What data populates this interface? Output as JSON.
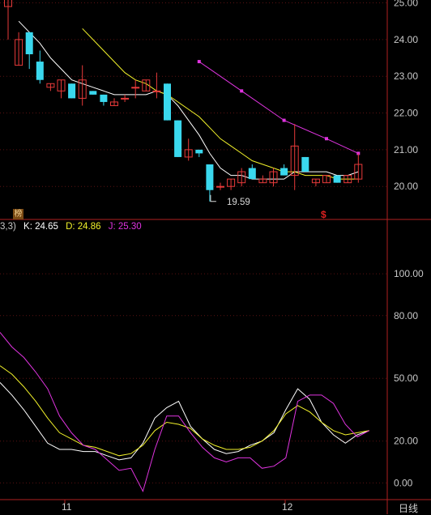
{
  "chart_data": [
    {
      "type": "candlestick",
      "ylim": [
        19.1,
        25.1
      ],
      "price_ticks": [
        "25.00",
        "24.00",
        "23.00",
        "22.00",
        "21.00",
        "20.00"
      ],
      "candles": [
        {
          "o": 24.9,
          "h": 25.1,
          "l": 24.0,
          "c": 25.1
        },
        {
          "o": 23.3,
          "h": 24.2,
          "l": 23.3,
          "c": 24.0
        },
        {
          "o": 24.2,
          "h": 24.2,
          "l": 23.2,
          "c": 23.6
        },
        {
          "o": 23.4,
          "h": 23.7,
          "l": 22.8,
          "c": 22.9
        },
        {
          "o": 22.7,
          "h": 22.8,
          "l": 22.6,
          "c": 22.8
        },
        {
          "o": 22.6,
          "h": 22.9,
          "l": 22.4,
          "c": 22.9
        },
        {
          "o": 22.8,
          "h": 22.8,
          "l": 22.4,
          "c": 22.4
        },
        {
          "o": 22.4,
          "h": 23.3,
          "l": 22.2,
          "c": 22.9
        },
        {
          "o": 22.6,
          "h": 22.6,
          "l": 22.5,
          "c": 22.5
        },
        {
          "o": 22.5,
          "h": 22.5,
          "l": 22.2,
          "c": 22.3
        },
        {
          "o": 22.2,
          "h": 22.4,
          "l": 22.2,
          "c": 22.3
        },
        {
          "o": 22.4,
          "h": 22.5,
          "l": 22.3,
          "c": 22.4
        },
        {
          "o": 22.7,
          "h": 22.9,
          "l": 22.4,
          "c": 22.7
        },
        {
          "o": 22.6,
          "h": 22.9,
          "l": 22.6,
          "c": 22.9
        },
        {
          "o": 22.6,
          "h": 23.1,
          "l": 22.4,
          "c": 22.6
        },
        {
          "o": 22.8,
          "h": 22.8,
          "l": 21.8,
          "c": 21.8
        },
        {
          "o": 21.8,
          "h": 21.8,
          "l": 20.8,
          "c": 20.8
        },
        {
          "o": 20.8,
          "h": 21.3,
          "l": 20.7,
          "c": 21.0
        },
        {
          "o": 21.0,
          "h": 21.0,
          "l": 20.8,
          "c": 20.9
        },
        {
          "o": 20.6,
          "h": 20.6,
          "l": 19.59,
          "c": 19.9
        },
        {
          "o": 20.0,
          "h": 20.1,
          "l": 19.9,
          "c": 20.0
        },
        {
          "o": 20.0,
          "h": 20.2,
          "l": 19.9,
          "c": 20.2
        },
        {
          "o": 20.1,
          "h": 20.5,
          "l": 20.0,
          "c": 20.4
        },
        {
          "o": 20.5,
          "h": 20.6,
          "l": 20.2,
          "c": 20.2
        },
        {
          "o": 20.1,
          "h": 20.3,
          "l": 20.1,
          "c": 20.2
        },
        {
          "o": 20.1,
          "h": 20.5,
          "l": 20.0,
          "c": 20.4
        },
        {
          "o": 20.5,
          "h": 20.6,
          "l": 20.3,
          "c": 20.3
        },
        {
          "o": 20.3,
          "h": 21.7,
          "l": 19.9,
          "c": 21.1
        },
        {
          "o": 20.8,
          "h": 20.8,
          "l": 20.4,
          "c": 20.4
        },
        {
          "o": 20.1,
          "h": 20.2,
          "l": 20.0,
          "c": 20.2
        },
        {
          "o": 20.1,
          "h": 20.3,
          "l": 20.1,
          "c": 20.3
        },
        {
          "o": 20.3,
          "h": 20.3,
          "l": 20.1,
          "c": 20.1
        },
        {
          "o": 20.1,
          "h": 20.3,
          "l": 20.1,
          "c": 20.3
        },
        {
          "o": 20.2,
          "h": 20.9,
          "l": 20.1,
          "c": 20.6
        }
      ],
      "ma_white": [
        null,
        24.5,
        24.2,
        23.9,
        23.5,
        23.2,
        22.9,
        22.8,
        22.7,
        22.6,
        22.5,
        22.5,
        22.5,
        22.5,
        22.6,
        22.5,
        22.2,
        21.8,
        21.4,
        20.9,
        20.5,
        20.3,
        20.3,
        20.2,
        20.2,
        20.2,
        20.2,
        20.4,
        20.4,
        20.4,
        20.4,
        20.3,
        20.3,
        20.4
      ],
      "ma_yellow": [
        null,
        null,
        null,
        null,
        null,
        null,
        null,
        24.3,
        24.0,
        23.7,
        23.4,
        23.1,
        22.9,
        22.8,
        22.6,
        22.5,
        22.3,
        22.1,
        21.9,
        21.6,
        21.3,
        21.1,
        20.9,
        20.7,
        20.6,
        20.5,
        20.4,
        20.4,
        20.3,
        20.3,
        20.3,
        20.2,
        20.2,
        20.2
      ],
      "ma_magenta": [
        {
          "i": 18,
          "v": 23.4
        },
        {
          "i": 22,
          "v": 22.6
        },
        {
          "i": 26,
          "v": 21.8
        },
        {
          "i": 30,
          "v": 21.3
        },
        {
          "i": 33,
          "v": 20.9
        }
      ],
      "low_marker": {
        "value": "19.59",
        "index": 19
      }
    },
    {
      "type": "line",
      "ylim": [
        -8,
        126
      ],
      "ticks": [
        "100.00",
        "80.00",
        "50.00",
        "20.00",
        "0.00"
      ],
      "tick_values": [
        100,
        80,
        50,
        20,
        0
      ],
      "series": [
        {
          "name": "K",
          "color": "#ffffff",
          "values": [
            48,
            42,
            35,
            27,
            19,
            16,
            16,
            15,
            15,
            13,
            11,
            12,
            19,
            31,
            36,
            39,
            27,
            21,
            16,
            14,
            15,
            18,
            20,
            24,
            35,
            45,
            40,
            29,
            23,
            19,
            23,
            25
          ]
        },
        {
          "name": "D",
          "color": "#f2f22a",
          "values": [
            56,
            52,
            46,
            39,
            31,
            24,
            21,
            18,
            17,
            15,
            13,
            14,
            18,
            25,
            29,
            28,
            26,
            21,
            18,
            16,
            16,
            17,
            20,
            25,
            33,
            37,
            34,
            29,
            25,
            23,
            24,
            25
          ]
        },
        {
          "name": "J",
          "color": "#e034e0",
          "values": [
            72,
            65,
            60,
            53,
            45,
            32,
            24,
            18,
            16,
            11,
            6,
            7,
            -4,
            16,
            32,
            32,
            24,
            17,
            12,
            10,
            12,
            12,
            7,
            8,
            12,
            39,
            42,
            42,
            38,
            28,
            22,
            25
          ]
        }
      ]
    }
  ],
  "labels": {
    "low_price": "19.59",
    "badge": "榜",
    "flag": "$",
    "kdj_prefix": "3,3)",
    "k": "K: 24.65",
    "d": "D: 24.86",
    "j": "J: 25.30",
    "x_11": "11",
    "x_12": "12",
    "period": "日线"
  },
  "colors": {
    "up": "#e83a3a",
    "down": "#3ad8ee",
    "bg": "#000000",
    "grid": "#5a1212",
    "axis": "#b02020"
  }
}
